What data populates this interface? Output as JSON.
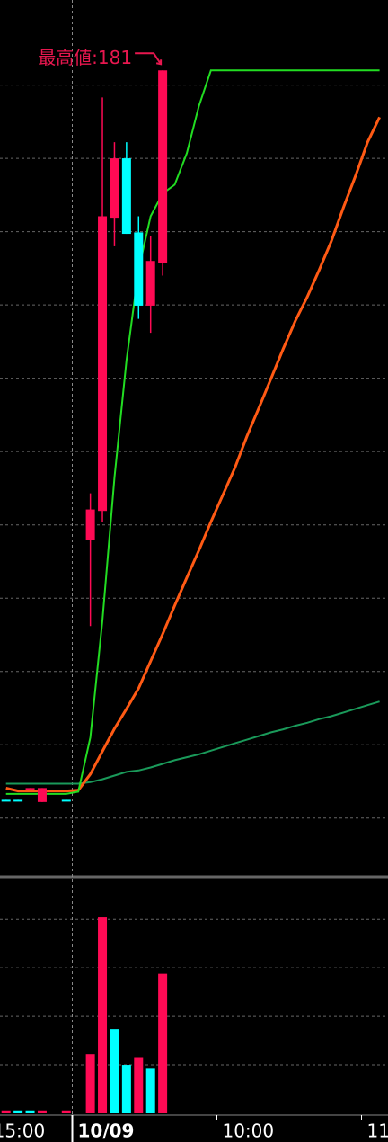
{
  "chart_data": {
    "type": "candlestick",
    "annotation": "最高値:181",
    "annotation_color": "#e8174f",
    "xlim": [
      -0.5,
      31.7
    ],
    "xticks": [
      {
        "value": -1.5,
        "label": "15:00"
      },
      {
        "value": 5.5,
        "label": "10/09"
      },
      {
        "value": 17.5,
        "label": "10:00"
      },
      {
        "value": 29.5,
        "label": "11"
      }
    ],
    "ylim": [
      71.0,
      190.6
    ],
    "yticks": [
      79,
      89,
      99,
      109,
      119,
      129,
      139,
      149,
      159,
      169,
      179
    ],
    "grid": true,
    "up_color": "#ff0a54",
    "down_color": "#00ffff",
    "candles": [
      {
        "x": 0,
        "open": 81.5,
        "high": 81.5,
        "low": 81.3,
        "close": 81.3
      },
      {
        "x": 1,
        "open": 81.5,
        "high": 81.5,
        "low": 81.3,
        "close": 81.3
      },
      {
        "x": 2,
        "open": 82.9,
        "high": 83.1,
        "low": 82.9,
        "close": 83.1
      },
      {
        "x": 3,
        "open": 81.2,
        "high": 83.1,
        "low": 81.2,
        "close": 83.1
      },
      {
        "x": 5,
        "open": 81.5,
        "high": 81.5,
        "low": 81.3,
        "close": 81.3
      },
      {
        "x": 7,
        "open": 117.0,
        "high": 123.3,
        "low": 105.2,
        "close": 121.1
      },
      {
        "x": 8,
        "open": 120.9,
        "high": 177.3,
        "low": 119.4,
        "close": 161.1
      },
      {
        "x": 9,
        "open": 160.9,
        "high": 171.2,
        "low": 157.0,
        "close": 169.0
      },
      {
        "x": 10,
        "open": 169.0,
        "high": 171.2,
        "low": 158.7,
        "close": 158.7
      },
      {
        "x": 11,
        "open": 158.9,
        "high": 161.1,
        "low": 147.1,
        "close": 148.9
      },
      {
        "x": 12,
        "open": 148.9,
        "high": 158.4,
        "low": 145.2,
        "close": 155.0
      },
      {
        "x": 13,
        "open": 154.7,
        "high": 181,
        "low": 153.0,
        "close": 181
      }
    ],
    "x": [
      0,
      1,
      2,
      3,
      4,
      5,
      6,
      7,
      8,
      9,
      10,
      11,
      12,
      13,
      14,
      15,
      16,
      17,
      18,
      19,
      20,
      21,
      22,
      23,
      24,
      25,
      26,
      27,
      28,
      29,
      30,
      31
    ],
    "series": [
      {
        "color": "#1a9a5a",
        "values": [
          83.7,
          83.7,
          83.7,
          83.7,
          83.7,
          83.7,
          83.7,
          83.9,
          84.3,
          84.8,
          85.3,
          85.5,
          85.9,
          86.4,
          86.9,
          87.3,
          87.7,
          88.2,
          88.7,
          89.2,
          89.7,
          90.2,
          90.7,
          91.1,
          91.6,
          92.0,
          92.5,
          92.9,
          93.4,
          93.9,
          94.4,
          94.9
        ]
      },
      {
        "color": "#ff5a14",
        "values": [
          83.1,
          82.7,
          82.7,
          82.7,
          82.7,
          82.7,
          82.8,
          85.0,
          88.1,
          91.2,
          93.9,
          96.7,
          100.4,
          104.1,
          108.0,
          111.8,
          115.5,
          119.4,
          123.1,
          126.8,
          131.1,
          135.0,
          139.0,
          143.0,
          146.8,
          150.1,
          153.8,
          157.7,
          162.3,
          166.6,
          171.2,
          174.6
        ]
      },
      {
        "color": "#22dd22",
        "values": [
          82.3,
          82.3,
          82.3,
          82.3,
          82.3,
          82.3,
          82.6,
          90.0,
          105.9,
          125.5,
          141.5,
          153.8,
          161.1,
          164.2,
          165.4,
          169.7,
          176.1,
          181,
          181,
          181,
          181,
          181,
          181,
          181,
          181,
          181,
          181,
          181,
          181,
          181,
          181,
          181
        ]
      }
    ],
    "volume": {
      "ylim": [
        0,
        241
      ],
      "yticks": [
        50,
        100,
        150,
        200
      ],
      "values": [
        3,
        3,
        3,
        3,
        null,
        3,
        null,
        61,
        202,
        87,
        50,
        57,
        46,
        144
      ],
      "colors": [
        "#ff0a54",
        "#00ffff",
        "#00ffff",
        "#ff0a54",
        null,
        "#ff0a54",
        null,
        "#ff0a54",
        "#ff0a54",
        "#00ffff",
        "#00ffff",
        "#ff0a54",
        "#00ffff",
        "#ff0a54"
      ]
    }
  }
}
